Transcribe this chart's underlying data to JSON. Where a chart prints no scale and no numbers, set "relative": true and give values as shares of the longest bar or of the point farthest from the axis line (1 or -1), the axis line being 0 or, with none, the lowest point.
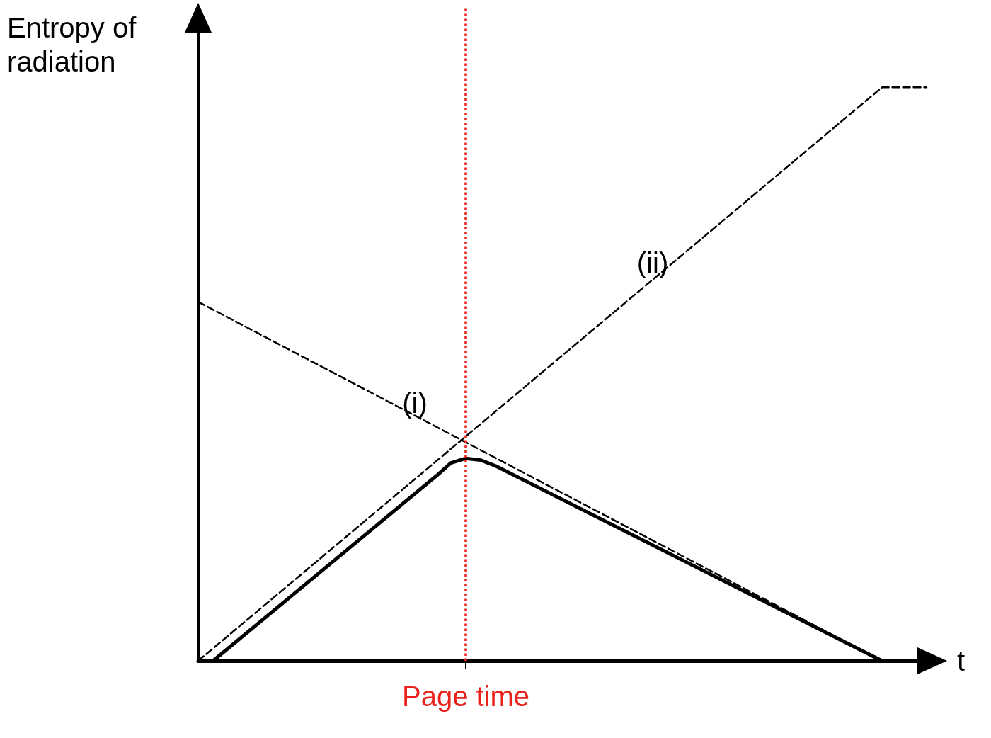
{
  "chart_data": {
    "type": "line",
    "relative": true,
    "ylabel": "Entropy of radiation",
    "xlabel": "t",
    "grid": false,
    "marker": "none",
    "categories": [
      null,
      null,
      null,
      null,
      null,
      null,
      null,
      null,
      null,
      null,
      null,
      null,
      null,
      null,
      null,
      null,
      null,
      null,
      null,
      null,
      null,
      null,
      null,
      null,
      null,
      null,
      null,
      null,
      null,
      null,
      null,
      null,
      null,
      null,
      null,
      null,
      null,
      null,
      null,
      null,
      null,
      null,
      null,
      null,
      null,
      null,
      null,
      null,
      null,
      null,
      null
    ],
    "series": [
      {
        "name": "(i)",
        "color": "#000000",
        "line_style": "dashed",
        "values": [
          0.626,
          null,
          null,
          null,
          null,
          null,
          null,
          null,
          null,
          null,
          null,
          null,
          null,
          null,
          null,
          null,
          null,
          null,
          null,
          null,
          null,
          null,
          null,
          null,
          null,
          null,
          null,
          null,
          null,
          null,
          null,
          null,
          null,
          null,
          null,
          null,
          null,
          null,
          null,
          null,
          null,
          null,
          null,
          null,
          null,
          null,
          0,
          null,
          null,
          null,
          null
        ]
      },
      {
        "name": "(ii)",
        "color": "#000000",
        "line_style": "dashed",
        "values": [
          0,
          null,
          null,
          null,
          null,
          null,
          null,
          null,
          null,
          null,
          null,
          null,
          null,
          null,
          null,
          null,
          null,
          null,
          null,
          null,
          null,
          null,
          null,
          null,
          null,
          null,
          null,
          null,
          null,
          null,
          null,
          null,
          null,
          null,
          null,
          null,
          null,
          null,
          null,
          null,
          null,
          null,
          null,
          null,
          null,
          null,
          1,
          null,
          null,
          1,
          null
        ]
      },
      {
        "color": "#000000",
        "line_style": "solid",
        "values": [
          null,
          0,
          null,
          null,
          null,
          null,
          null,
          null,
          null,
          null,
          null,
          null,
          null,
          null,
          null,
          null,
          0.322,
          0.345,
          0.353,
          0.35,
          0.34,
          null,
          null,
          null,
          null,
          null,
          null,
          null,
          null,
          null,
          null,
          null,
          null,
          null,
          null,
          null,
          null,
          null,
          null,
          null,
          null,
          null,
          null,
          null,
          null,
          null,
          0,
          null,
          null,
          null,
          null
        ]
      }
    ],
    "annotations": [
      "Page time"
    ]
  }
}
